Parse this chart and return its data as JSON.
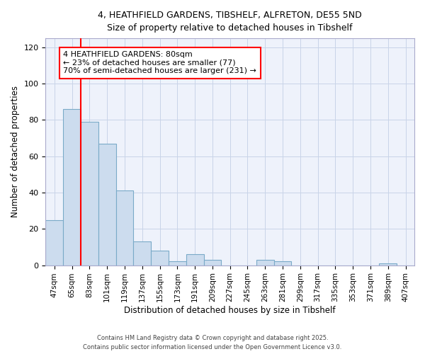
{
  "title_line1": "4, HEATHFIELD GARDENS, TIBSHELF, ALFRETON, DE55 5ND",
  "title_line2": "Size of property relative to detached houses in Tibshelf",
  "xlabel": "Distribution of detached houses by size in Tibshelf",
  "ylabel": "Number of detached properties",
  "bar_color": "#ccdcee",
  "bar_edge_color": "#7aaac8",
  "categories": [
    "47sqm",
    "65sqm",
    "83sqm",
    "101sqm",
    "119sqm",
    "137sqm",
    "155sqm",
    "173sqm",
    "191sqm",
    "209sqm",
    "227sqm",
    "245sqm",
    "263sqm",
    "281sqm",
    "299sqm",
    "317sqm",
    "335sqm",
    "353sqm",
    "371sqm",
    "389sqm",
    "407sqm"
  ],
  "values": [
    25,
    86,
    79,
    67,
    41,
    13,
    8,
    2,
    6,
    3,
    0,
    0,
    3,
    2,
    0,
    0,
    0,
    0,
    0,
    1,
    0
  ],
  "ylim": [
    0,
    125
  ],
  "yticks": [
    0,
    20,
    40,
    60,
    80,
    100,
    120
  ],
  "annotation_title": "4 HEATHFIELD GARDENS: 80sqm",
  "annotation_line1": "← 23% of detached houses are smaller (77)",
  "annotation_line2": "70% of semi-detached houses are larger (231) →",
  "grid_color": "#c8d4e8",
  "background_color": "#eef2fb",
  "footnote1": "Contains HM Land Registry data © Crown copyright and database right 2025.",
  "footnote2": "Contains public sector information licensed under the Open Government Licence v3.0."
}
